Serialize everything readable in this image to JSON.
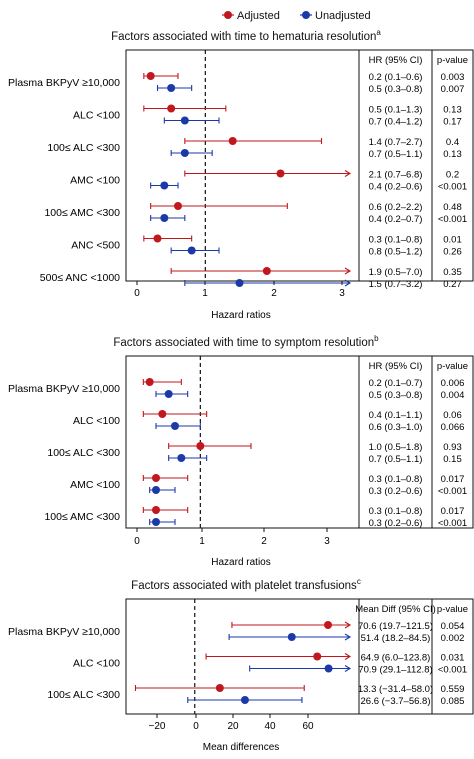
{
  "legend": {
    "items": [
      {
        "label": "Adjusted",
        "color": "#c0181e"
      },
      {
        "label": "Unadjusted",
        "color": "#1b3aa8"
      }
    ]
  },
  "colors": {
    "adjusted": "#c0181e",
    "unadjusted": "#1b3aa8"
  },
  "chart_data": [
    {
      "type": "forest",
      "title": "Factors associated with time to hematuria resolution",
      "title_superscript": "a",
      "xlabel": "Hazard ratios",
      "xlim": [
        -0.1,
        3
      ],
      "xticks": [
        "0",
        "1",
        "2",
        "3"
      ],
      "reference_line": 1,
      "estimate_header": "HR (95% CI)",
      "p_header": "p-value",
      "rows": [
        {
          "factor": "Plasma BKPyV ≥10,000",
          "adjusted": {
            "est": 0.2,
            "lo": 0.1,
            "hi": 0.6,
            "text": "0.2 (0.1–0.6)",
            "p": "0.003"
          },
          "unadjusted": {
            "est": 0.5,
            "lo": 0.3,
            "hi": 0.8,
            "text": "0.5 (0.3–0.8)",
            "p": "0.007"
          }
        },
        {
          "factor": "ALC <100",
          "adjusted": {
            "est": 0.5,
            "lo": 0.1,
            "hi": 1.3,
            "text": "0.5 (0.1–1.3)",
            "p": "0.13"
          },
          "unadjusted": {
            "est": 0.7,
            "lo": 0.4,
            "hi": 1.2,
            "text": "0.7 (0.4–1.2)",
            "p": "0.17"
          }
        },
        {
          "factor": "100≤ ALC <300",
          "adjusted": {
            "est": 1.4,
            "lo": 0.7,
            "hi": 2.7,
            "text": "1.4 (0.7–2.7)",
            "p": "0.4"
          },
          "unadjusted": {
            "est": 0.7,
            "lo": 0.5,
            "hi": 1.1,
            "text": "0.7 (0.5–1.1)",
            "p": "0.13"
          }
        },
        {
          "factor": "AMC <100",
          "adjusted": {
            "est": 2.1,
            "lo": 0.7,
            "hi": 6.8,
            "text": "2.1 (0.7–6.8)",
            "p": "0.2"
          },
          "unadjusted": {
            "est": 0.4,
            "lo": 0.2,
            "hi": 0.6,
            "text": "0.4 (0.2–0.6)",
            "p": "<0.001"
          }
        },
        {
          "factor": "100≤ AMC <300",
          "adjusted": {
            "est": 0.6,
            "lo": 0.2,
            "hi": 2.2,
            "text": "0.6 (0.2–2.2)",
            "p": "0.48"
          },
          "unadjusted": {
            "est": 0.4,
            "lo": 0.2,
            "hi": 0.7,
            "text": "0.4 (0.2–0.7)",
            "p": "<0.001"
          }
        },
        {
          "factor": "ANC <500",
          "adjusted": {
            "est": 0.3,
            "lo": 0.1,
            "hi": 0.8,
            "text": "0.3 (0.1–0.8)",
            "p": "0.01"
          },
          "unadjusted": {
            "est": 0.8,
            "lo": 0.5,
            "hi": 1.2,
            "text": "0.8 (0.5–1.2)",
            "p": "0.26"
          }
        },
        {
          "factor": "500≤ ANC <1000",
          "adjusted": {
            "est": 1.9,
            "lo": 0.5,
            "hi": 7.0,
            "text": "1.9 (0.5–7.0)",
            "p": "0.35"
          },
          "unadjusted": {
            "est": 1.5,
            "lo": 0.7,
            "hi": 3.2,
            "text": "1.5 (0.7–3.2)",
            "p": "0.27"
          }
        }
      ]
    },
    {
      "type": "forest",
      "title": "Factors associated with time to symptom resolution",
      "title_superscript": "b",
      "xlabel": "Hazard ratios",
      "xlim": [
        -0.1,
        3
      ],
      "xticks": [
        "0",
        "1",
        "2",
        "3"
      ],
      "reference_line": 1,
      "estimate_header": "HR (95% CI)",
      "p_header": "p-value",
      "rows": [
        {
          "factor": "Plasma BKPyV ≥10,000",
          "adjusted": {
            "est": 0.2,
            "lo": 0.1,
            "hi": 0.7,
            "text": "0.2 (0.1–0.7)",
            "p": "0.006"
          },
          "unadjusted": {
            "est": 0.5,
            "lo": 0.3,
            "hi": 0.8,
            "text": "0.5 (0.3–0.8)",
            "p": "0.004"
          }
        },
        {
          "factor": "ALC <100",
          "adjusted": {
            "est": 0.4,
            "lo": 0.1,
            "hi": 1.1,
            "text": "0.4 (0.1–1.1)",
            "p": "0.06"
          },
          "unadjusted": {
            "est": 0.6,
            "lo": 0.3,
            "hi": 1.0,
            "text": "0.6 (0.3–1.0)",
            "p": "0.066"
          }
        },
        {
          "factor": "100≤ ALC <300",
          "adjusted": {
            "est": 1.0,
            "lo": 0.5,
            "hi": 1.8,
            "text": "1.0 (0.5–1.8)",
            "p": "0.93"
          },
          "unadjusted": {
            "est": 0.7,
            "lo": 0.5,
            "hi": 1.1,
            "text": "0.7 (0.5–1.1)",
            "p": "0.15"
          }
        },
        {
          "factor": "AMC <100",
          "adjusted": {
            "est": 0.3,
            "lo": 0.1,
            "hi": 0.8,
            "text": "0.3 (0.1–0.8)",
            "p": "0.017"
          },
          "unadjusted": {
            "est": 0.3,
            "lo": 0.2,
            "hi": 0.6,
            "text": "0.3 (0.2–0.6)",
            "p": "<0.001"
          }
        },
        {
          "factor": "100≤ AMC <300",
          "adjusted": {
            "est": 0.3,
            "lo": 0.1,
            "hi": 0.8,
            "text": "0.3 (0.1–0.8)",
            "p": "0.017"
          },
          "unadjusted": {
            "est": 0.3,
            "lo": 0.2,
            "hi": 0.6,
            "text": "0.3 (0.2–0.6)",
            "p": "<0.001"
          }
        }
      ]
    },
    {
      "type": "forest",
      "title": "Factors associated with platelet transfusions",
      "title_superscript": "c",
      "xlabel": "Mean differences",
      "xlim": [
        -40,
        80
      ],
      "xticks": [
        "−20",
        "0",
        "20",
        "40",
        "60"
      ],
      "reference_line": 0,
      "estimate_header": "Mean Diff (95% CI)",
      "p_header": "p-value",
      "rows": [
        {
          "factor": "Plasma BKPyV ≥10,000",
          "adjusted": {
            "est": 70.6,
            "lo": 19.7,
            "hi": 121.5,
            "text": "70.6 (19.7–121.5)",
            "p": "0.054"
          },
          "unadjusted": {
            "est": 51.4,
            "lo": 18.2,
            "hi": 84.5,
            "text": "51.4 (18.2–84.5)",
            "p": "0.002"
          }
        },
        {
          "factor": "ALC <100",
          "adjusted": {
            "est": 64.9,
            "lo": 6.0,
            "hi": 123.8,
            "text": "64.9 (6.0–123.8)",
            "p": "0.031"
          },
          "unadjusted": {
            "est": 70.9,
            "lo": 29.1,
            "hi": 112.8,
            "text": "70.9 (29.1–112.8)",
            "p": "<0.001"
          }
        },
        {
          "factor": "100≤ ALC <300",
          "adjusted": {
            "est": 13.3,
            "lo": -31.4,
            "hi": 58.0,
            "text": "13.3 (−31.4–58.0)",
            "p": "0.559"
          },
          "unadjusted": {
            "est": 26.6,
            "lo": -3.7,
            "hi": 56.8,
            "text": "26.6 (−3.7–56.8)",
            "p": "0.085"
          }
        }
      ]
    }
  ]
}
